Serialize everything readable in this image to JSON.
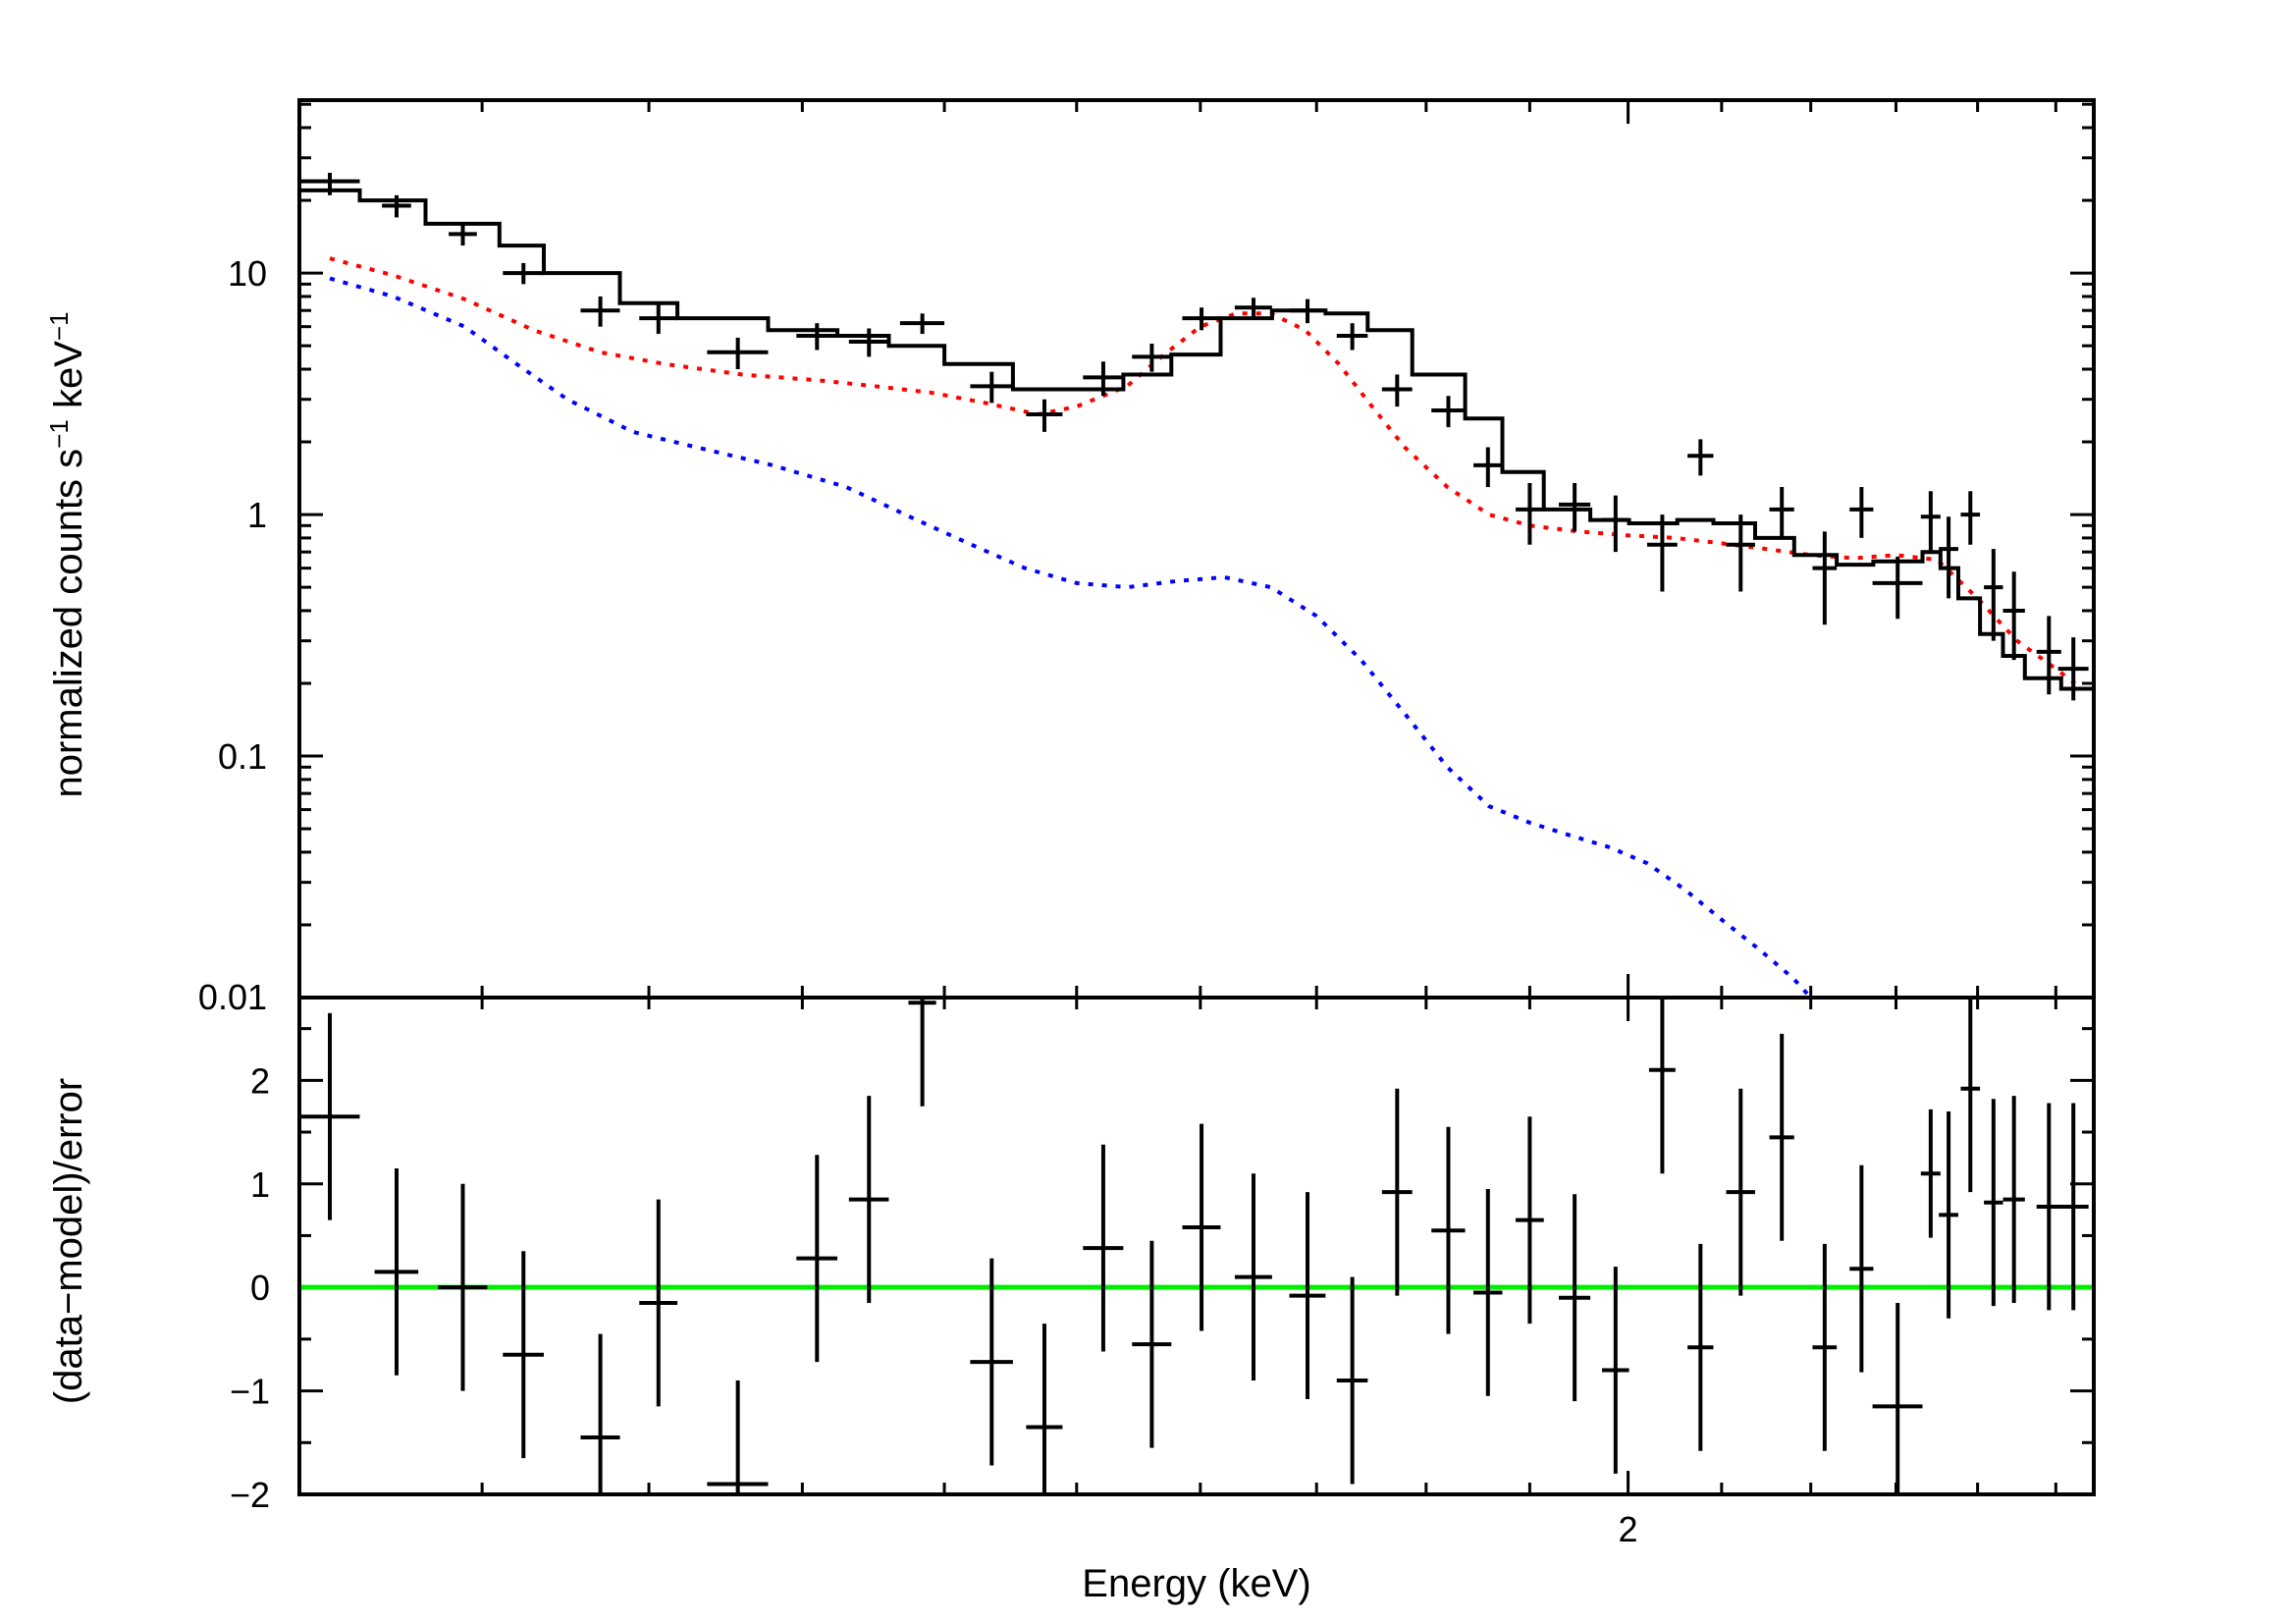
{
  "chart_data": [
    {
      "type": "line",
      "panel": "spectrum",
      "xlabel": "Energy (keV)",
      "ylabel": "normalized counts s-1 keV-1",
      "ylabel_parts": [
        "normalized counts s",
        "−1",
        " keV",
        "−1"
      ],
      "xscale": "log",
      "yscale": "log",
      "xlim": [
        1.0,
        2.55
      ],
      "ylim": [
        0.01,
        52
      ],
      "x_tick_labels": [],
      "y_ticks": [
        0.1,
        1,
        10
      ],
      "y_tick_labels": [
        "0.1",
        "1",
        "10"
      ],
      "grid": false,
      "data_points": {
        "x": [
          1.016,
          1.052,
          1.089,
          1.124,
          1.17,
          1.206,
          1.257,
          1.31,
          1.346,
          1.384,
          1.435,
          1.475,
          1.521,
          1.56,
          1.601,
          1.645,
          1.692,
          1.732,
          1.773,
          1.821,
          1.859,
          1.9,
          1.945,
          1.987,
          2.036,
          2.077,
          2.121,
          2.167,
          2.216,
          2.259,
          2.302,
          2.342,
          2.364,
          2.391,
          2.42,
          2.446,
          2.491,
          2.523
        ],
        "xerr": [
          0.016,
          0.008,
          0.008,
          0.012,
          0.012,
          0.012,
          0.02,
          0.014,
          0.014,
          0.016,
          0.016,
          0.014,
          0.016,
          0.016,
          0.016,
          0.016,
          0.016,
          0.014,
          0.014,
          0.016,
          0.014,
          0.014,
          0.016,
          0.014,
          0.016,
          0.014,
          0.016,
          0.014,
          0.014,
          0.014,
          0.03,
          0.012,
          0.012,
          0.012,
          0.012,
          0.014,
          0.016,
          0.02
        ],
        "y": [
          24.0,
          19.0,
          14.5,
          10.0,
          7.0,
          6.5,
          4.7,
          5.5,
          5.2,
          6.2,
          3.4,
          2.6,
          3.7,
          4.5,
          6.5,
          7.2,
          7.0,
          5.5,
          3.3,
          2.7,
          1.6,
          1.05,
          1.1,
          0.95,
          0.75,
          1.75,
          0.75,
          1.05,
          0.6,
          1.05,
          0.52,
          0.98,
          0.72,
          1.0,
          0.5,
          0.4,
          0.27,
          0.23
        ],
        "y_lo": [
          21.0,
          17.0,
          13.0,
          9.0,
          6.0,
          5.6,
          4.0,
          4.8,
          4.5,
          5.6,
          2.9,
          2.2,
          3.1,
          3.9,
          5.8,
          6.5,
          6.2,
          4.8,
          2.8,
          2.3,
          1.3,
          0.75,
          0.85,
          0.7,
          0.48,
          1.45,
          0.48,
          0.8,
          0.35,
          0.8,
          0.37,
          0.7,
          0.45,
          0.75,
          0.3,
          0.25,
          0.18,
          0.17
        ],
        "y_hi": [
          26.0,
          21.0,
          16.0,
          11.0,
          8.0,
          7.4,
          5.4,
          6.2,
          5.9,
          6.8,
          3.9,
          3.0,
          4.3,
          5.1,
          7.2,
          7.9,
          7.8,
          6.2,
          3.8,
          3.1,
          1.9,
          1.35,
          1.35,
          1.2,
          1.0,
          2.05,
          1.0,
          1.3,
          0.85,
          1.3,
          0.67,
          1.25,
          0.98,
          1.25,
          0.72,
          0.58,
          0.38,
          0.31
        ]
      },
      "model_total": {
        "edges": [
          1.0,
          1.032,
          1.068,
          1.11,
          1.136,
          1.182,
          1.218,
          1.277,
          1.324,
          1.36,
          1.4,
          1.451,
          1.489,
          1.537,
          1.576,
          1.617,
          1.661,
          1.708,
          1.746,
          1.787,
          1.837,
          1.873,
          1.914,
          1.961,
          2.001,
          2.052,
          2.091,
          2.137,
          2.181,
          2.23,
          2.273,
          2.332,
          2.354,
          2.376,
          2.403,
          2.432,
          2.46,
          2.507,
          2.55
        ],
        "values": [
          22.0,
          20.0,
          16.0,
          13.0,
          10.0,
          7.5,
          6.5,
          5.8,
          5.5,
          5.0,
          4.2,
          3.3,
          3.3,
          3.8,
          4.6,
          6.5,
          7.0,
          6.8,
          5.8,
          3.8,
          2.5,
          1.5,
          1.05,
          0.95,
          0.92,
          0.95,
          0.92,
          0.8,
          0.68,
          0.62,
          0.64,
          0.7,
          0.6,
          0.45,
          0.32,
          0.26,
          0.21,
          0.19
        ]
      },
      "model_component_red": {
        "color": "#ff0000",
        "x": [
          1.016,
          1.05,
          1.09,
          1.13,
          1.17,
          1.21,
          1.26,
          1.31,
          1.35,
          1.39,
          1.43,
          1.47,
          1.5,
          1.54,
          1.57,
          1.6,
          1.63,
          1.66,
          1.69,
          1.72,
          1.75,
          1.78,
          1.82,
          1.86,
          1.9,
          1.95,
          2.0,
          2.05,
          2.1,
          2.15,
          2.2,
          2.25,
          2.3,
          2.35,
          2.4,
          2.45,
          2.5,
          2.525
        ],
        "y": [
          11.5,
          9.8,
          7.8,
          5.8,
          4.7,
          4.2,
          3.8,
          3.6,
          3.4,
          3.2,
          2.9,
          2.6,
          2.8,
          3.4,
          4.6,
          6.0,
          6.8,
          6.8,
          5.8,
          4.2,
          2.8,
          1.9,
          1.3,
          1.0,
          0.9,
          0.85,
          0.82,
          0.8,
          0.76,
          0.72,
          0.68,
          0.66,
          0.68,
          0.65,
          0.45,
          0.3,
          0.23,
          0.2
        ]
      },
      "model_component_blue": {
        "color": "#0000ff",
        "x": [
          1.016,
          1.05,
          1.09,
          1.12,
          1.15,
          1.19,
          1.23,
          1.28,
          1.33,
          1.38,
          1.42,
          1.46,
          1.5,
          1.54,
          1.58,
          1.62,
          1.66,
          1.7,
          1.74,
          1.78,
          1.82,
          1.86,
          1.9,
          1.94,
          1.98,
          2.02,
          2.06,
          2.1,
          2.14,
          2.18,
          2.2
        ],
        "y": [
          9.5,
          8.0,
          6.0,
          4.2,
          3.0,
          2.2,
          1.9,
          1.6,
          1.3,
          0.95,
          0.75,
          0.6,
          0.52,
          0.5,
          0.53,
          0.55,
          0.5,
          0.38,
          0.25,
          0.15,
          0.09,
          0.062,
          0.053,
          0.047,
          0.042,
          0.036,
          0.028,
          0.021,
          0.016,
          0.012,
          0.0095
        ]
      }
    },
    {
      "type": "scatter",
      "panel": "residuals",
      "xlabel": "Energy (keV)",
      "ylabel": "(data−model)/error",
      "xscale": "log",
      "xlim": [
        1.0,
        2.55
      ],
      "ylim": [
        -2.0,
        2.8
      ],
      "x_ticks": [
        2
      ],
      "x_tick_labels": [
        "2"
      ],
      "y_ticks": [
        -2,
        -1,
        0,
        1,
        2
      ],
      "y_tick_labels": [
        "−2",
        "−1",
        "0",
        "1",
        "2"
      ],
      "top_left_label": "0.01",
      "reference_line": {
        "y": 0,
        "color": "#00ee00"
      },
      "grid": false,
      "points": {
        "x": [
          1.016,
          1.052,
          1.089,
          1.124,
          1.17,
          1.206,
          1.257,
          1.31,
          1.346,
          1.384,
          1.435,
          1.475,
          1.521,
          1.56,
          1.601,
          1.645,
          1.692,
          1.732,
          1.773,
          1.821,
          1.859,
          1.9,
          1.945,
          1.987,
          2.036,
          2.077,
          2.121,
          2.167,
          2.216,
          2.259,
          2.302,
          2.342,
          2.364,
          2.391,
          2.42,
          2.446,
          2.491,
          2.523
        ],
        "xerr": [
          0.016,
          0.012,
          0.014,
          0.012,
          0.012,
          0.012,
          0.02,
          0.014,
          0.014,
          0.01,
          0.016,
          0.014,
          0.016,
          0.016,
          0.016,
          0.016,
          0.016,
          0.014,
          0.014,
          0.016,
          0.014,
          0.014,
          0.016,
          0.014,
          0.014,
          0.014,
          0.016,
          0.014,
          0.014,
          0.014,
          0.03,
          0.012,
          0.012,
          0.012,
          0.012,
          0.014,
          0.016,
          0.02
        ],
        "y": [
          1.65,
          0.15,
          0.0,
          -0.65,
          -1.45,
          -0.15,
          -1.9,
          0.28,
          0.85,
          2.75,
          -0.72,
          -1.35,
          0.38,
          -0.55,
          0.58,
          0.1,
          -0.08,
          -0.9,
          0.92,
          0.55,
          -0.05,
          0.65,
          -0.1,
          -0.8,
          2.1,
          -0.58,
          0.92,
          1.45,
          -0.58,
          0.18,
          -1.15,
          1.1,
          0.7,
          1.92,
          0.82,
          0.85,
          0.78,
          0.78
        ],
        "err": [
          1.0,
          1.0,
          1.0,
          1.0,
          1.0,
          1.0,
          1.0,
          1.0,
          1.0,
          1.0,
          1.0,
          1.0,
          1.0,
          1.0,
          1.0,
          1.0,
          1.0,
          1.0,
          1.0,
          1.0,
          1.0,
          1.0,
          1.0,
          1.0,
          1.0,
          1.0,
          1.0,
          1.0,
          1.0,
          1.0,
          1.0,
          0.62,
          1.0,
          1.0,
          1.0,
          1.0,
          1.0,
          1.0
        ]
      }
    }
  ]
}
